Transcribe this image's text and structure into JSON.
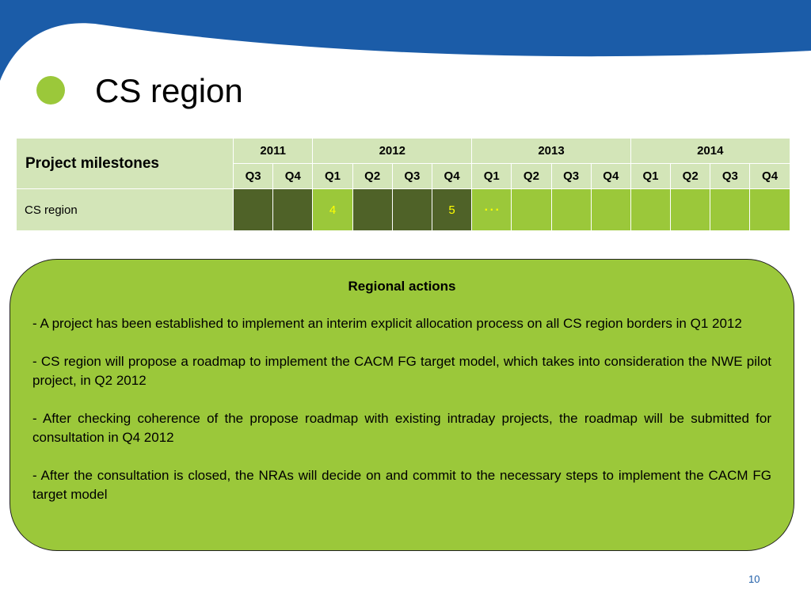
{
  "colors": {
    "header_band": "#1b5ca8",
    "bullet": "#9bc83a",
    "table_header": "#d3e5b8",
    "done_cell": "#4f6228",
    "planned_cell": "#9bc83a",
    "box_fill": "#9bc83a",
    "marker_text": "#ffff00",
    "page_number": "#1f5ea8"
  },
  "slide": {
    "title": "CS region",
    "page_number": "10"
  },
  "milestones_table": {
    "header_label": "Project milestones",
    "years": [
      {
        "label": "2011",
        "span": 2
      },
      {
        "label": "2012",
        "span": 4
      },
      {
        "label": "2013",
        "span": 4
      },
      {
        "label": "2014",
        "span": 4
      }
    ],
    "quarters": [
      "Q3",
      "Q4",
      "Q1",
      "Q2",
      "Q3",
      "Q4",
      "Q1",
      "Q2",
      "Q3",
      "Q4",
      "Q1",
      "Q2",
      "Q3",
      "Q4"
    ],
    "rows": [
      {
        "label": "CS region",
        "cells": [
          {
            "status": "done",
            "mark": ""
          },
          {
            "status": "done",
            "mark": ""
          },
          {
            "status": "planned",
            "mark": "4"
          },
          {
            "status": "done",
            "mark": ""
          },
          {
            "status": "done",
            "mark": ""
          },
          {
            "status": "done",
            "mark": "5"
          },
          {
            "status": "planned",
            "mark": "…"
          },
          {
            "status": "planned",
            "mark": ""
          },
          {
            "status": "planned",
            "mark": ""
          },
          {
            "status": "planned",
            "mark": ""
          },
          {
            "status": "planned",
            "mark": ""
          },
          {
            "status": "planned",
            "mark": ""
          },
          {
            "status": "planned",
            "mark": ""
          },
          {
            "status": "planned",
            "mark": ""
          }
        ]
      }
    ]
  },
  "regional_actions": {
    "title": "Regional actions",
    "items": [
      "- A project has been established to implement an interim explicit allocation process on all CS region borders in Q1 2012",
      "- CS region will propose a roadmap to implement the CACM FG target model, which takes into consideration the NWE pilot project, in Q2 2012",
      "- After checking coherence of the propose roadmap with existing intraday projects, the roadmap will be submitted for consultation in Q4 2012",
      "- After the consultation is closed, the NRAs will decide on and commit to the necessary steps to implement the CACM FG target model"
    ]
  }
}
